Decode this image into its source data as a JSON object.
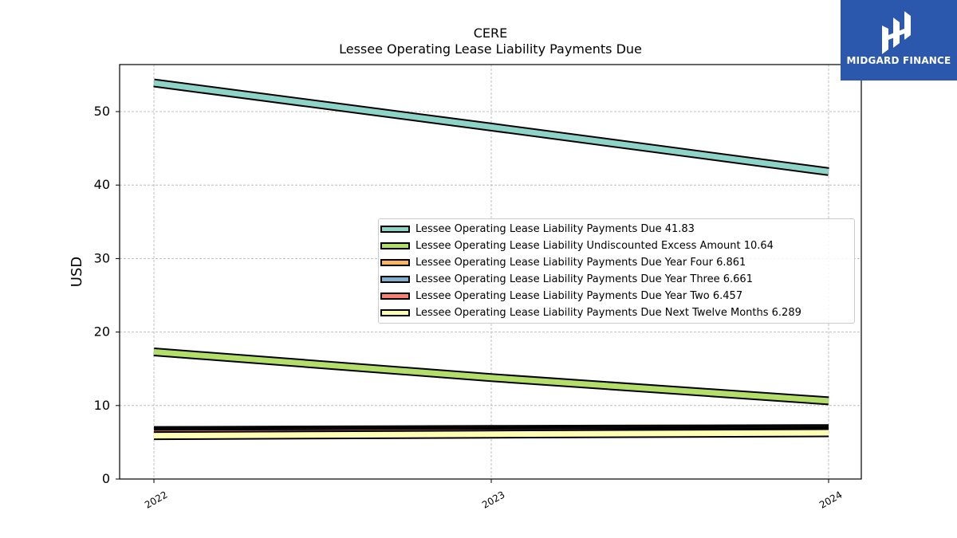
{
  "title": "CERE",
  "subtitle": "Lessee Operating Lease Liability Payments Due",
  "logo": {
    "text": "MIDGARD FINANCE",
    "icon": "midgard-logo-icon",
    "color": "#2b57ad"
  },
  "chart_data": {
    "type": "line",
    "title": "CERE",
    "subtitle": "Lessee Operating Lease Liability Payments Due",
    "xlabel": "",
    "ylabel": "USD",
    "x": [
      "2022",
      "2023",
      "2024"
    ],
    "ylim": [
      0,
      56.4
    ],
    "yticks": [
      "0",
      "10",
      "20",
      "30",
      "40",
      "50"
    ],
    "grid": true,
    "legend_position": "center-right",
    "series": [
      {
        "name": "Lessee Operating Lease Liability Payments Due",
        "legend": "Lessee Operating Lease Liability Payments Due  41.83",
        "color": "#8dd3c7",
        "values": [
          53.9,
          47.9,
          41.83
        ]
      },
      {
        "name": "Lessee Operating Lease Liability Undiscounted Excess Amount",
        "legend": "Lessee Operating Lease Liability Undiscounted Excess Amount  10.64",
        "color": "#b3de69",
        "values": [
          17.3,
          13.8,
          10.64
        ]
      },
      {
        "name": "Lessee Operating Lease Liability Payments Due Year Four",
        "legend": "Lessee Operating Lease Liability Payments Due Year Four  6.861",
        "color": "#fdb462",
        "values": [
          6.6,
          6.75,
          6.861
        ]
      },
      {
        "name": "Lessee Operating Lease Liability Payments Due Year Three",
        "legend": "Lessee Operating Lease Liability Payments Due Year Three  6.661",
        "color": "#80b1d3",
        "values": [
          6.4,
          6.55,
          6.661
        ]
      },
      {
        "name": "Lessee Operating Lease Liability Payments Due Year Two",
        "legend": "Lessee Operating Lease Liability Payments Due Year Two  6.457",
        "color": "#fb8072",
        "values": [
          6.2,
          6.35,
          6.457
        ]
      },
      {
        "name": "Lessee Operating Lease Liability Payments Due Next Twelve Months",
        "legend": "Lessee Operating Lease Liability Payments Due Next Twelve Months  6.289",
        "color": "#ffffb3",
        "values": [
          5.9,
          6.1,
          6.289
        ]
      }
    ]
  }
}
